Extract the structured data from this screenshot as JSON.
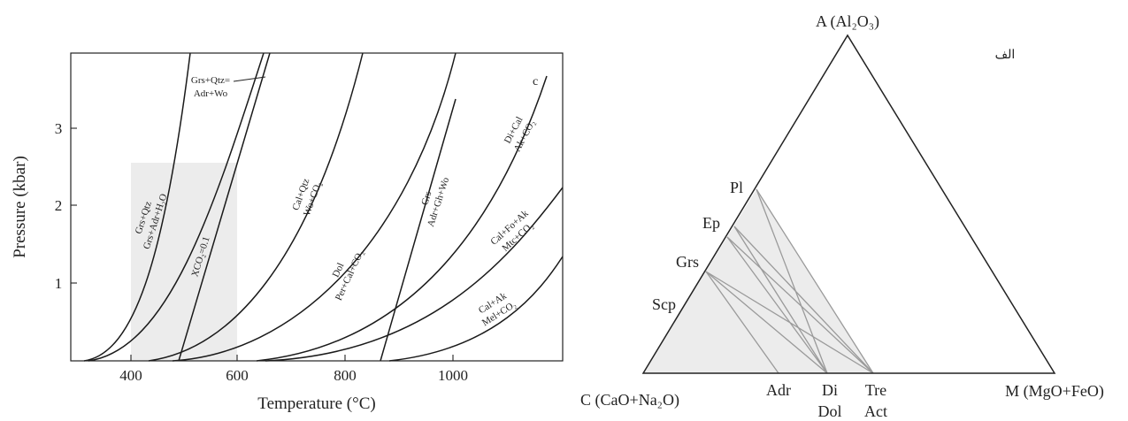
{
  "diagram_type": "petrology figure: P-T phase diagram with reaction curves and an ACM ternary compatibility diagram",
  "pt_diagram": {
    "x_axis": {
      "label": "Temperature (°C)",
      "ticks": [
        "400",
        "600",
        "800",
        "1000"
      ]
    },
    "y_axis": {
      "label": "Pressure (kbar)",
      "ticks": [
        "1",
        "2",
        "3"
      ]
    },
    "corner_mark": "c",
    "reactions": [
      {
        "id": "r1",
        "lines": [
          "Grs+Qtz",
          "Grs+Adr+H₂O"
        ]
      },
      {
        "id": "r2",
        "lines": [
          "Grs+Qtz=",
          "Adr+Wo"
        ]
      },
      {
        "id": "r3",
        "lines": [
          "Cal+Qtz",
          "Wo+CO₂"
        ]
      },
      {
        "id": "r4",
        "lines": [
          "Dol",
          "Per+Cal+CO₂"
        ]
      },
      {
        "id": "r5",
        "lines": [
          "Grs",
          "Adr+Gh+Wo"
        ]
      },
      {
        "id": "r6",
        "lines": [
          "Di+Cal",
          "Ak+CO₂"
        ]
      },
      {
        "id": "r7",
        "lines": [
          "Cal+Fo+Ak",
          "Mtc+CO₂"
        ]
      },
      {
        "id": "r8",
        "lines": [
          "Cal+Ak",
          "Mel+CO₂"
        ]
      },
      {
        "id": "r9",
        "lines": [
          "XCO₂=0.1"
        ]
      }
    ]
  },
  "ternary": {
    "corner_mark": "الف",
    "vertices": {
      "A": "A (Al₂O₃)",
      "C": "C (CaO+Na₂O)",
      "M": "M (MgO+FeO)"
    },
    "left_edge_phases": [
      "Pl",
      "Ep",
      "Grs",
      "Scp"
    ],
    "base_phases": [
      "Adr",
      "Di",
      "Dol",
      "Tre",
      "Act"
    ],
    "tie_lines": [
      [
        "Scp",
        "Adr"
      ],
      [
        "Scp",
        "Di"
      ],
      [
        "Scp",
        "Tre"
      ],
      [
        "Grs",
        "Di"
      ],
      [
        "Grs",
        "Tre"
      ],
      [
        "Ep",
        "Di"
      ],
      [
        "Ep",
        "Tre"
      ],
      [
        "Pl",
        "Di"
      ],
      [
        "Pl",
        "Tre"
      ]
    ]
  }
}
